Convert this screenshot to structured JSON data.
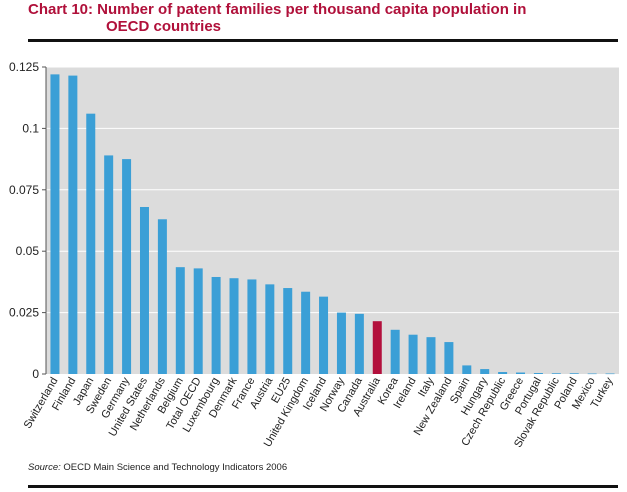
{
  "header": {
    "title_line1": "Chart 10: Number of patent families per thousand capita population in",
    "title_line2": "OECD countries"
  },
  "footer": {
    "source_label": "Source:",
    "source_text": " OECD Main Science and Technology Indicators 2006"
  },
  "colors": {
    "bar": "#3b9fd6",
    "highlight": "#b3103c",
    "plot_bg": "#dcdcdc",
    "grid": "#ffffff"
  },
  "chart_data": {
    "type": "bar",
    "categories": [
      "Switzerland",
      "Finland",
      "Japan",
      "Sweden",
      "Germany",
      "United States",
      "Netherlands",
      "Belgium",
      "Total OECD",
      "Luxembourg",
      "Denmark",
      "France",
      "Austria",
      "EU25",
      "United Kingdom",
      "Iceland",
      "Norway",
      "Canada",
      "Australia",
      "Korea",
      "Ireland",
      "Italy",
      "New Zealand",
      "Spain",
      "Hungary",
      "Czech Republic",
      "Greece",
      "Portugal",
      "Slovak Republic",
      "Poland",
      "Mexico",
      "Turkey"
    ],
    "values": [
      0.122,
      0.1215,
      0.106,
      0.089,
      0.0875,
      0.068,
      0.063,
      0.0435,
      0.043,
      0.0395,
      0.039,
      0.0385,
      0.0365,
      0.035,
      0.0335,
      0.0315,
      0.025,
      0.0245,
      0.0215,
      0.018,
      0.016,
      0.015,
      0.013,
      0.0035,
      0.002,
      0.0008,
      0.0006,
      0.0004,
      0.0003,
      0.0003,
      0.0002,
      0.0002
    ],
    "highlight_category": "Australia",
    "ylim": [
      0,
      0.125
    ],
    "yticks": [
      "0",
      "0.025",
      "0.05",
      "0.075",
      "0.1",
      "0.125"
    ],
    "ytick_values": [
      0,
      0.025,
      0.05,
      0.075,
      0.1,
      0.125
    ],
    "grid": true
  }
}
